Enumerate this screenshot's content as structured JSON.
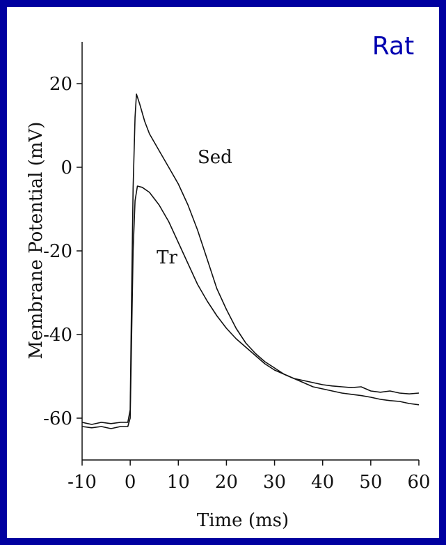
{
  "colors": {
    "border": "#0000a0",
    "panel": "#ffffff",
    "species_label": "#0000b0",
    "ink": "#111111"
  },
  "species_label": "Rat",
  "chart_data": {
    "type": "line",
    "xlabel": "Time (ms)",
    "ylabel": "Membrane Potential (mV)",
    "xlim": [
      -10,
      60
    ],
    "ylim": [
      -70,
      30
    ],
    "x_ticks": [
      -10,
      0,
      10,
      20,
      30,
      40,
      50,
      60
    ],
    "y_ticks": [
      -60,
      -40,
      -20,
      0,
      20
    ],
    "x_tick_labels": [
      "-10",
      "0",
      "10",
      "20",
      "30",
      "40",
      "50",
      "60"
    ],
    "y_tick_labels": [
      "-60",
      "-40",
      "-20",
      "0",
      "20"
    ],
    "grid": false,
    "series": [
      {
        "name": "Sed",
        "label_at": [
          14,
          1
        ],
        "points": [
          [
            -10,
            -61
          ],
          [
            -8,
            -61.5
          ],
          [
            -6,
            -61
          ],
          [
            -4,
            -61.3
          ],
          [
            -2,
            -61
          ],
          [
            -0.5,
            -61
          ],
          [
            0,
            -58
          ],
          [
            0.3,
            -30
          ],
          [
            0.6,
            -5
          ],
          [
            1,
            12
          ],
          [
            1.3,
            17.5
          ],
          [
            2,
            15
          ],
          [
            3,
            11
          ],
          [
            4,
            8
          ],
          [
            6,
            4
          ],
          [
            8,
            0
          ],
          [
            10,
            -4
          ],
          [
            12,
            -9
          ],
          [
            14,
            -15
          ],
          [
            16,
            -22
          ],
          [
            18,
            -29
          ],
          [
            20,
            -34
          ],
          [
            22,
            -38.5
          ],
          [
            24,
            -42
          ],
          [
            26,
            -44.5
          ],
          [
            28,
            -46.5
          ],
          [
            30,
            -48
          ],
          [
            32,
            -49.5
          ],
          [
            34,
            -50.5
          ],
          [
            36,
            -51
          ],
          [
            38,
            -51.5
          ],
          [
            40,
            -52
          ],
          [
            42,
            -52.3
          ],
          [
            44,
            -52.5
          ],
          [
            46,
            -52.7
          ],
          [
            48,
            -52.5
          ],
          [
            50,
            -53.5
          ],
          [
            52,
            -53.8
          ],
          [
            54,
            -53.5
          ],
          [
            56,
            -54
          ],
          [
            58,
            -54.2
          ],
          [
            60,
            -54
          ]
        ]
      },
      {
        "name": "Tr",
        "label_at": [
          5.5,
          -23
        ],
        "points": [
          [
            -10,
            -62
          ],
          [
            -8,
            -62.3
          ],
          [
            -6,
            -62
          ],
          [
            -4,
            -62.5
          ],
          [
            -2,
            -62
          ],
          [
            -0.5,
            -62
          ],
          [
            0,
            -60
          ],
          [
            0.3,
            -40
          ],
          [
            0.6,
            -20
          ],
          [
            1,
            -8
          ],
          [
            1.5,
            -4.5
          ],
          [
            2.5,
            -4.8
          ],
          [
            4,
            -6
          ],
          [
            6,
            -9
          ],
          [
            8,
            -13
          ],
          [
            10,
            -18
          ],
          [
            12,
            -23
          ],
          [
            14,
            -28
          ],
          [
            16,
            -32
          ],
          [
            18,
            -35.5
          ],
          [
            20,
            -38.5
          ],
          [
            22,
            -41
          ],
          [
            24,
            -43
          ],
          [
            26,
            -45
          ],
          [
            28,
            -47
          ],
          [
            30,
            -48.5
          ],
          [
            32,
            -49.5
          ],
          [
            34,
            -50.5
          ],
          [
            36,
            -51.5
          ],
          [
            38,
            -52.5
          ],
          [
            40,
            -53
          ],
          [
            42,
            -53.5
          ],
          [
            44,
            -54
          ],
          [
            46,
            -54.3
          ],
          [
            48,
            -54.6
          ],
          [
            50,
            -55
          ],
          [
            52,
            -55.5
          ],
          [
            54,
            -55.8
          ],
          [
            56,
            -56
          ],
          [
            58,
            -56.5
          ],
          [
            60,
            -56.8
          ]
        ]
      }
    ]
  }
}
